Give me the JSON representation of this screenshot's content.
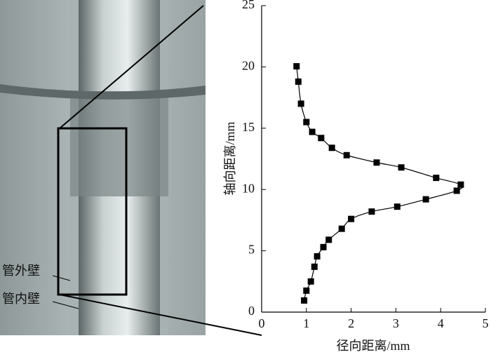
{
  "chart_data": {
    "type": "line",
    "xlabel": "径向距离/mm",
    "ylabel": "轴向距离/mm",
    "x": [
      0.78,
      0.82,
      0.88,
      1.0,
      1.13,
      1.33,
      1.57,
      1.9,
      2.57,
      3.12,
      3.9,
      4.45,
      4.36,
      3.67,
      3.03,
      2.46,
      2.0,
      1.79,
      1.5,
      1.38,
      1.24,
      1.18,
      1.1,
      1.0,
      0.95
    ],
    "values": [
      20.05,
      18.8,
      17.0,
      15.5,
      14.7,
      14.2,
      13.4,
      12.8,
      12.2,
      11.8,
      10.95,
      10.4,
      9.9,
      9.2,
      8.6,
      8.2,
      7.6,
      6.8,
      5.9,
      5.3,
      4.55,
      3.7,
      2.5,
      1.75,
      0.95
    ],
    "xlim": [
      0,
      5
    ],
    "ylim": [
      0,
      25
    ],
    "xticks": [
      0,
      1,
      2,
      3,
      4,
      5
    ],
    "yticks": [
      0,
      5,
      10,
      15,
      20,
      25
    ],
    "color": "#000000",
    "marker": "square"
  },
  "photo_labels": [
    "管外壁",
    "管内壁"
  ]
}
